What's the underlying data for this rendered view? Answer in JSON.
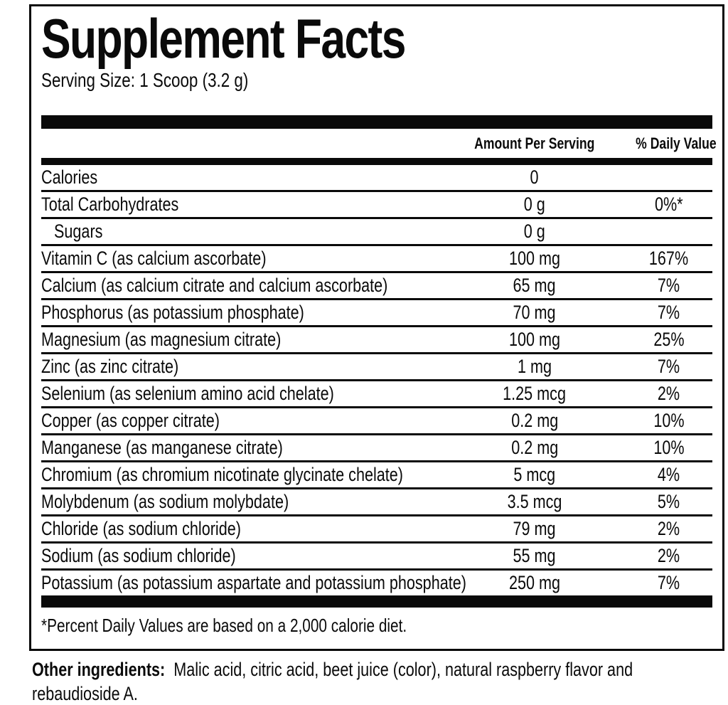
{
  "label": {
    "title": "Supplement Facts",
    "serving_size": "Serving Size: 1 Scoop (3.2 g)",
    "columns": {
      "amount": "Amount Per Serving",
      "daily_value": "% Daily Value"
    },
    "rows": [
      {
        "name": "Calories",
        "amount": "0",
        "dv": ""
      },
      {
        "name": "Total Carbohydrates",
        "amount": "0 g",
        "dv": "0%*"
      },
      {
        "name": "Sugars",
        "amount": "0 g",
        "dv": "",
        "indent": true
      },
      {
        "name": "Vitamin C (as calcium ascorbate)",
        "amount": "100 mg",
        "dv": "167%"
      },
      {
        "name": "Calcium (as calcium citrate and calcium ascorbate)",
        "amount": "65 mg",
        "dv": "7%"
      },
      {
        "name": "Phosphorus (as potassium phosphate)",
        "amount": "70 mg",
        "dv": "7%"
      },
      {
        "name": "Magnesium (as magnesium citrate)",
        "amount": "100 mg",
        "dv": "25%"
      },
      {
        "name": "Zinc (as zinc citrate)",
        "amount": "1 mg",
        "dv": "7%"
      },
      {
        "name": "Selenium (as selenium amino acid chelate)",
        "amount": "1.25 mcg",
        "dv": "2%"
      },
      {
        "name": "Copper (as copper citrate)",
        "amount": "0.2 mg",
        "dv": "10%"
      },
      {
        "name": "Manganese (as manganese citrate)",
        "amount": "0.2 mg",
        "dv": "10%"
      },
      {
        "name": "Chromium (as chromium nicotinate glycinate chelate)",
        "amount": "5 mcg",
        "dv": "4%"
      },
      {
        "name": "Molybdenum (as sodium molybdate)",
        "amount": "3.5 mcg",
        "dv": "5%"
      },
      {
        "name": "Chloride (as sodium chloride)",
        "amount": "79 mg",
        "dv": "2%"
      },
      {
        "name": "Sodium (as sodium chloride)",
        "amount": "55 mg",
        "dv": "2%"
      },
      {
        "name": "Potassium (as potassium aspartate and potassium phosphate)",
        "amount": "250 mg",
        "dv": "7%"
      }
    ],
    "footnote": "*Percent Daily Values are based on a 2,000 calorie diet."
  },
  "other_ingredients": {
    "label": "Other ingredients:",
    "line1": "Malic acid, citric acid, beet juice (color), natural raspberry flavor and",
    "line2": "rebaudioside A."
  },
  "colors": {
    "text": "#0a0a0a",
    "background": "#ffffff",
    "rule": "#0a0a0a"
  }
}
